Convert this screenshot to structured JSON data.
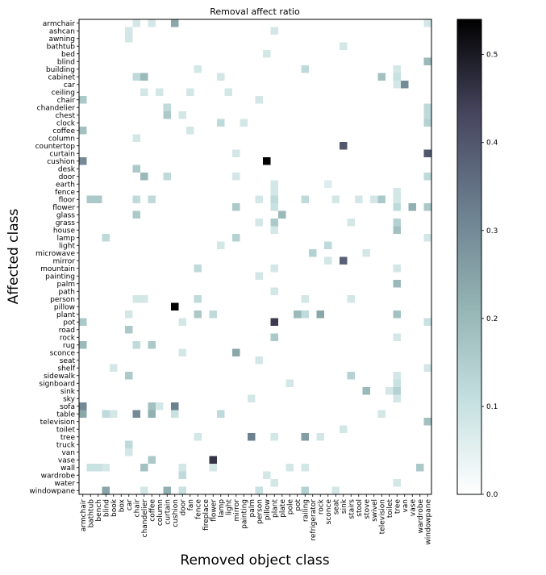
{
  "chart_data": {
    "type": "heatmap",
    "title": "Removal affect ratio",
    "xlabel": "Removed object class",
    "ylabel": "Affected class",
    "x_categories": [
      "armchair",
      "bathtub",
      "bench",
      "blind",
      "book",
      "box",
      "car",
      "chair",
      "chandelier",
      "coffee",
      "column",
      "curtain",
      "cushion",
      "door",
      "fan",
      "fence",
      "fireplace",
      "flower",
      "lamp",
      "light",
      "mirror",
      "painting",
      "palm",
      "person",
      "pillow",
      "plant",
      "plate",
      "pole",
      "pot",
      "railing",
      "refrigerator",
      "rock",
      "sconce",
      "seat",
      "sink",
      "stairs",
      "stool",
      "stove",
      "swivel",
      "television",
      "toilet",
      "tree",
      "van",
      "vase",
      "wardrobe",
      "windowpane"
    ],
    "y_categories": [
      "armchair",
      "ashcan",
      "awning",
      "bathtub",
      "bed",
      "blind",
      "building",
      "cabinet",
      "car",
      "ceiling",
      "chair",
      "chandelier",
      "chest",
      "clock",
      "coffee",
      "column",
      "countertop",
      "curtain",
      "cushion",
      "desk",
      "door",
      "earth",
      "fence",
      "floor",
      "flower",
      "glass",
      "grass",
      "house",
      "lamp",
      "light",
      "microwave",
      "mirror",
      "mountain",
      "painting",
      "palm",
      "path",
      "person",
      "pillow",
      "plant",
      "pot",
      "road",
      "rock",
      "rug",
      "sconce",
      "seat",
      "shelf",
      "sidewalk",
      "signboard",
      "sink",
      "sky",
      "sofa",
      "table",
      "television",
      "toilet",
      "tree",
      "truck",
      "van",
      "vase",
      "wall",
      "wardrobe",
      "water",
      "windowpane"
    ],
    "colorbar": {
      "min": 0.0,
      "max": 0.54,
      "ticks": [
        "0.0",
        "0.1",
        "0.2",
        "0.3",
        "0.4",
        "0.5"
      ],
      "colormap": "bone_r"
    },
    "cells": [
      [
        "armchair",
        "chair",
        0.08
      ],
      [
        "armchair",
        "coffee",
        0.08
      ],
      [
        "armchair",
        "cushion",
        0.24
      ],
      [
        "armchair",
        "windowpane",
        0.08
      ],
      [
        "ashcan",
        "car",
        0.08
      ],
      [
        "ashcan",
        "plant",
        0.08
      ],
      [
        "awning",
        "car",
        0.08
      ],
      [
        "bathtub",
        "sink",
        0.08
      ],
      [
        "bed",
        "pillow",
        0.08
      ],
      [
        "blind",
        "windowpane",
        0.2
      ],
      [
        "building",
        "fence",
        0.08
      ],
      [
        "building",
        "railing",
        0.12
      ],
      [
        "building",
        "tree",
        0.08
      ],
      [
        "cabinet",
        "chair",
        0.12
      ],
      [
        "cabinet",
        "chandelier",
        0.2
      ],
      [
        "cabinet",
        "lamp",
        0.08
      ],
      [
        "cabinet",
        "television",
        0.18
      ],
      [
        "cabinet",
        "tree",
        0.1
      ],
      [
        "car",
        "tree",
        0.08
      ],
      [
        "car",
        "van",
        0.3
      ],
      [
        "ceiling",
        "chandelier",
        0.08
      ],
      [
        "ceiling",
        "column",
        0.08
      ],
      [
        "ceiling",
        "fan",
        0.08
      ],
      [
        "ceiling",
        "light",
        0.08
      ],
      [
        "chair",
        "armchair",
        0.16
      ],
      [
        "chair",
        "person",
        0.08
      ],
      [
        "chandelier",
        "curtain",
        0.12
      ],
      [
        "chandelier",
        "windowpane",
        0.12
      ],
      [
        "chest",
        "curtain",
        0.16
      ],
      [
        "chest",
        "door",
        0.08
      ],
      [
        "chest",
        "windowpane",
        0.12
      ],
      [
        "clock",
        "lamp",
        0.12
      ],
      [
        "clock",
        "painting",
        0.08
      ],
      [
        "clock",
        "windowpane",
        0.14
      ],
      [
        "coffee",
        "armchair",
        0.18
      ],
      [
        "coffee",
        "fan",
        0.08
      ],
      [
        "column",
        "chair",
        0.08
      ],
      [
        "countertop",
        "sink",
        0.4
      ],
      [
        "curtain",
        "mirror",
        0.08
      ],
      [
        "curtain",
        "windowpane",
        0.4
      ],
      [
        "cushion",
        "armchair",
        0.3
      ],
      [
        "cushion",
        "pillow",
        0.54
      ],
      [
        "desk",
        "chair",
        0.16
      ],
      [
        "door",
        "chandelier",
        0.2
      ],
      [
        "door",
        "curtain",
        0.12
      ],
      [
        "door",
        "mirror",
        0.08
      ],
      [
        "door",
        "windowpane",
        0.12
      ],
      [
        "earth",
        "plant",
        0.08
      ],
      [
        "earth",
        "sconce",
        0.06
      ],
      [
        "fence",
        "plant",
        0.08
      ],
      [
        "fence",
        "tree",
        0.08
      ],
      [
        "floor",
        "bathtub",
        0.16
      ],
      [
        "floor",
        "bench",
        0.16
      ],
      [
        "floor",
        "chair",
        0.12
      ],
      [
        "floor",
        "coffee",
        0.12
      ],
      [
        "floor",
        "person",
        0.08
      ],
      [
        "floor",
        "plant",
        0.12
      ],
      [
        "floor",
        "railing",
        0.12
      ],
      [
        "floor",
        "seat",
        0.08
      ],
      [
        "floor",
        "stool",
        0.08
      ],
      [
        "floor",
        "swivel",
        0.08
      ],
      [
        "floor",
        "television",
        0.16
      ],
      [
        "floor",
        "tree",
        0.08
      ],
      [
        "flower",
        "mirror",
        0.16
      ],
      [
        "flower",
        "plant",
        0.1
      ],
      [
        "flower",
        "tree",
        0.12
      ],
      [
        "flower",
        "vase",
        0.22
      ],
      [
        "flower",
        "windowpane",
        0.16
      ],
      [
        "glass",
        "chair",
        0.16
      ],
      [
        "glass",
        "plate",
        0.2
      ],
      [
        "grass",
        "person",
        0.08
      ],
      [
        "grass",
        "plant",
        0.16
      ],
      [
        "grass",
        "stairs",
        0.08
      ],
      [
        "grass",
        "tree",
        0.14
      ],
      [
        "house",
        "plant",
        0.08
      ],
      [
        "house",
        "tree",
        0.18
      ],
      [
        "lamp",
        "blind",
        0.12
      ],
      [
        "lamp",
        "mirror",
        0.14
      ],
      [
        "lamp",
        "windowpane",
        0.08
      ],
      [
        "light",
        "lamp",
        0.08
      ],
      [
        "light",
        "sconce",
        0.12
      ],
      [
        "microwave",
        "refrigerator",
        0.14
      ],
      [
        "microwave",
        "stove",
        0.08
      ],
      [
        "mirror",
        "sconce",
        0.08
      ],
      [
        "mirror",
        "sink",
        0.38
      ],
      [
        "mountain",
        "fence",
        0.12
      ],
      [
        "mountain",
        "plant",
        0.08
      ],
      [
        "mountain",
        "tree",
        0.08
      ],
      [
        "painting",
        "person",
        0.08
      ],
      [
        "palm",
        "tree",
        0.2
      ],
      [
        "path",
        "plant",
        0.08
      ],
      [
        "person",
        "chair",
        0.08
      ],
      [
        "person",
        "chandelier",
        0.08
      ],
      [
        "person",
        "fence",
        0.12
      ],
      [
        "person",
        "railing",
        0.08
      ],
      [
        "person",
        "stairs",
        0.08
      ],
      [
        "pillow",
        "cushion",
        0.54
      ],
      [
        "plant",
        "car",
        0.08
      ],
      [
        "plant",
        "fence",
        0.16
      ],
      [
        "plant",
        "flower",
        0.12
      ],
      [
        "plant",
        "pot",
        0.2
      ],
      [
        "plant",
        "railing",
        0.12
      ],
      [
        "plant",
        "rock",
        0.24
      ],
      [
        "plant",
        "tree",
        0.18
      ],
      [
        "pot",
        "armchair",
        0.16
      ],
      [
        "pot",
        "door",
        0.08
      ],
      [
        "pot",
        "plant",
        0.45
      ],
      [
        "pot",
        "windowpane",
        0.1
      ],
      [
        "road",
        "car",
        0.16
      ],
      [
        "rock",
        "plant",
        0.16
      ],
      [
        "rock",
        "tree",
        0.08
      ],
      [
        "rug",
        "armchair",
        0.2
      ],
      [
        "rug",
        "chair",
        0.12
      ],
      [
        "rug",
        "coffee",
        0.16
      ],
      [
        "sconce",
        "door",
        0.08
      ],
      [
        "sconce",
        "mirror",
        0.24
      ],
      [
        "seat",
        "person",
        0.08
      ],
      [
        "shelf",
        "book",
        0.08
      ],
      [
        "shelf",
        "windowpane",
        0.08
      ],
      [
        "sidewalk",
        "car",
        0.16
      ],
      [
        "sidewalk",
        "stairs",
        0.14
      ],
      [
        "sidewalk",
        "tree",
        0.08
      ],
      [
        "signboard",
        "pole",
        0.08
      ],
      [
        "signboard",
        "tree",
        0.1
      ],
      [
        "sink",
        "stove",
        0.2
      ],
      [
        "sink",
        "toilet",
        0.08
      ],
      [
        "sink",
        "tree",
        0.14
      ],
      [
        "sky",
        "palm",
        0.08
      ],
      [
        "sky",
        "tree",
        0.08
      ],
      [
        "sofa",
        "armchair",
        0.3
      ],
      [
        "sofa",
        "coffee",
        0.18
      ],
      [
        "sofa",
        "column",
        0.08
      ],
      [
        "sofa",
        "cushion",
        0.32
      ],
      [
        "table",
        "armchair",
        0.24
      ],
      [
        "table",
        "blind",
        0.12
      ],
      [
        "table",
        "book",
        0.08
      ],
      [
        "table",
        "chair",
        0.3
      ],
      [
        "table",
        "coffee",
        0.22
      ],
      [
        "table",
        "cushion",
        0.1
      ],
      [
        "table",
        "lamp",
        0.12
      ],
      [
        "table",
        "television",
        0.08
      ],
      [
        "television",
        "windowpane",
        0.18
      ],
      [
        "toilet",
        "sink",
        0.08
      ],
      [
        "tree",
        "fence",
        0.08
      ],
      [
        "tree",
        "palm",
        0.32
      ],
      [
        "tree",
        "plant",
        0.08
      ],
      [
        "tree",
        "railing",
        0.26
      ],
      [
        "tree",
        "rock",
        0.08
      ],
      [
        "truck",
        "car",
        0.12
      ],
      [
        "van",
        "car",
        0.08
      ],
      [
        "vase",
        "coffee",
        0.16
      ],
      [
        "vase",
        "flower",
        0.46
      ],
      [
        "wall",
        "bathtub",
        0.1
      ],
      [
        "wall",
        "bench",
        0.1
      ],
      [
        "wall",
        "blind",
        0.08
      ],
      [
        "wall",
        "chandelier",
        0.18
      ],
      [
        "wall",
        "door",
        0.08
      ],
      [
        "wall",
        "flower",
        0.08
      ],
      [
        "wall",
        "pole",
        0.08
      ],
      [
        "wall",
        "railing",
        0.08
      ],
      [
        "wall",
        "wardrobe",
        0.16
      ],
      [
        "wardrobe",
        "door",
        0.12
      ],
      [
        "wardrobe",
        "pillow",
        0.08
      ],
      [
        "water",
        "plant",
        0.08
      ],
      [
        "water",
        "tree",
        0.08
      ],
      [
        "windowpane",
        "blind",
        0.24
      ],
      [
        "windowpane",
        "chandelier",
        0.08
      ],
      [
        "windowpane",
        "curtain",
        0.22
      ],
      [
        "windowpane",
        "door",
        0.1
      ],
      [
        "windowpane",
        "person",
        0.1
      ],
      [
        "windowpane",
        "railing",
        0.14
      ],
      [
        "windowpane",
        "seat",
        0.08
      ]
    ]
  }
}
